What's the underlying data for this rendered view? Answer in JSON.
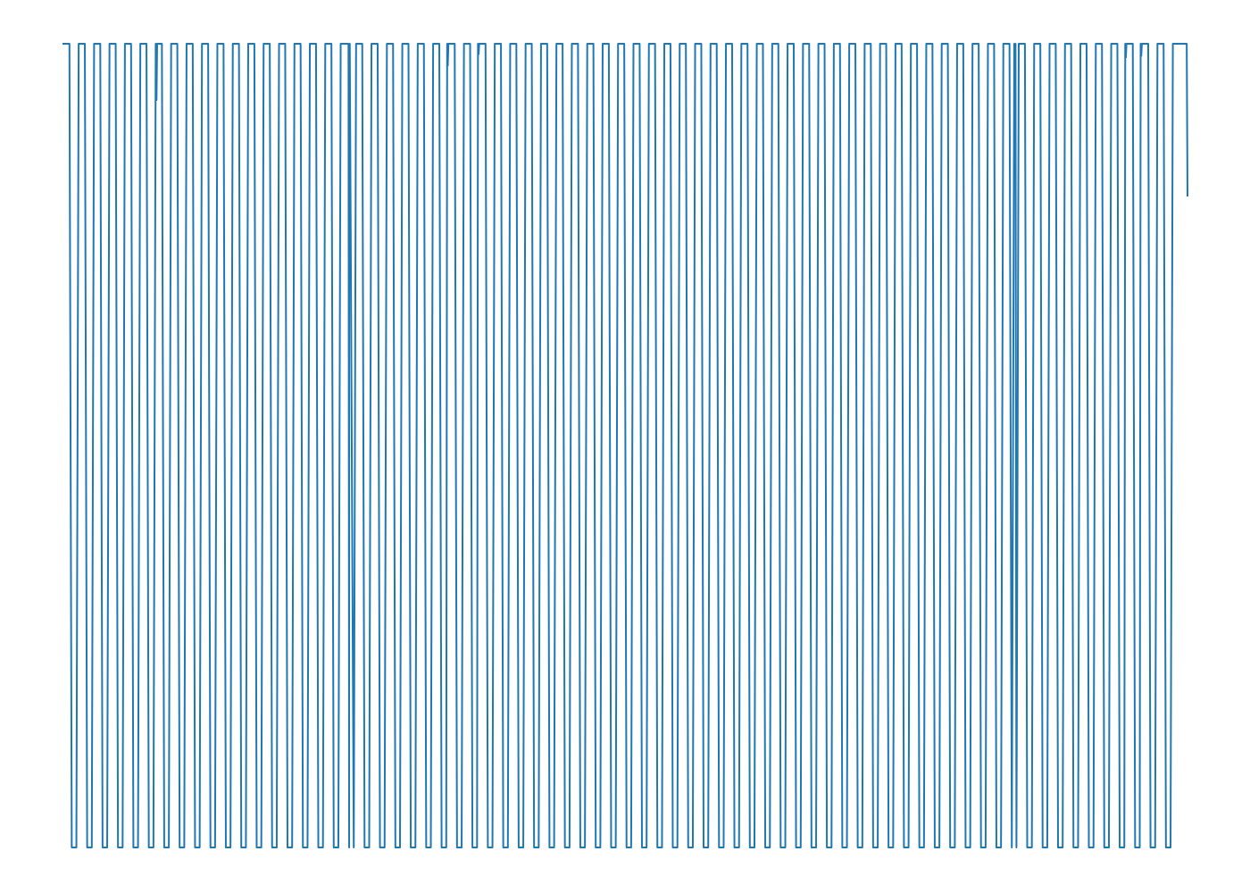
{
  "chart_data": {
    "type": "line",
    "title": "",
    "xlabel": "",
    "ylabel": "",
    "axes_visible": false,
    "grid": false,
    "legend": "none",
    "line_color": "#1f77b4",
    "xlim": [
      0,
      73
    ],
    "ylim": [
      0,
      1
    ],
    "cycles": 72,
    "levels": {
      "high": 1,
      "low": 0
    },
    "notch_minima": [
      {
        "x": 6.1,
        "y": 0.93
      },
      {
        "x": 18.6,
        "y": 0.95
      },
      {
        "x": 25.0,
        "y": 0.973
      },
      {
        "x": 27.0,
        "y": 0.987
      },
      {
        "x": 61.8,
        "y": 0.985
      },
      {
        "x": 69.0,
        "y": 0.983
      },
      {
        "x": 70.0,
        "y": 0.985
      }
    ],
    "end_value": {
      "x": 73.0,
      "y": 0.81
    }
  }
}
